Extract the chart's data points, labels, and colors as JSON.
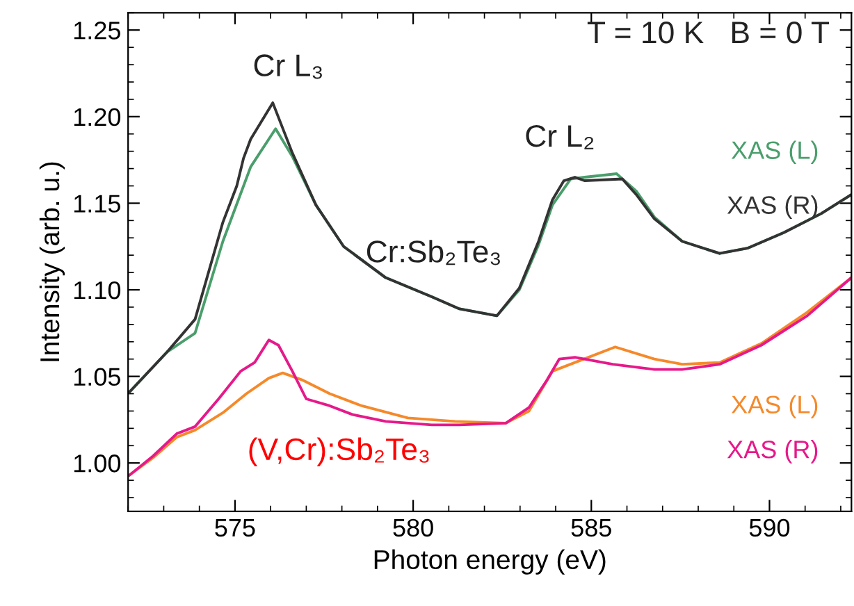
{
  "chart_data": {
    "type": "line",
    "xlabel": "Photon energy (eV)",
    "ylabel": "Intensity (arb. u.)",
    "xlim": [
      572,
      592.3
    ],
    "xticks": [
      575,
      580,
      585,
      590
    ],
    "ylim": [
      0.972,
      1.26
    ],
    "yticks": [
      {
        "value": 1.0,
        "label": "1.00"
      },
      {
        "value": 1.05,
        "label": "1.05"
      },
      {
        "value": 1.1,
        "label": "1.10"
      },
      {
        "value": 1.15,
        "label": "1.15"
      },
      {
        "value": 1.2,
        "label": "1.20"
      },
      {
        "value": 1.25,
        "label": "1.25"
      }
    ],
    "grid": false,
    "legend": false,
    "marker": "none",
    "line_style": "solid",
    "series": [
      {
        "name": "XAS (L)",
        "color": "#4a9e6b",
        "x": [
          572.04,
          573.09,
          573.88,
          574.66,
          575.44,
          576.14,
          576.61,
          577.27,
          578.05,
          579.23,
          580.52,
          581.3,
          582.35,
          582.98,
          583.52,
          583.91,
          584.42,
          584.81,
          585.71,
          586.26,
          586.77,
          587.55,
          588.6,
          589.38,
          590.4,
          591.45,
          592.3
        ],
        "values": [
          1.041,
          1.064,
          1.075,
          1.128,
          1.171,
          1.193,
          1.177,
          1.149,
          1.125,
          1.107,
          1.096,
          1.089,
          1.085,
          1.1,
          1.126,
          1.149,
          1.164,
          1.165,
          1.167,
          1.157,
          1.142,
          1.128,
          1.121,
          1.124,
          1.133,
          1.144,
          1.155
        ]
      },
      {
        "name": "XAS (R)",
        "color": "#333333",
        "x": [
          572.04,
          573.09,
          573.88,
          574.66,
          575.05,
          575.24,
          575.44,
          576.06,
          576.61,
          577.27,
          578.05,
          579.23,
          580.52,
          581.3,
          582.35,
          582.98,
          583.52,
          583.91,
          584.23,
          584.54,
          584.81,
          585.87,
          586.26,
          586.77,
          587.55,
          588.6,
          589.38,
          590.4,
          591.45,
          592.3
        ],
        "values": [
          1.041,
          1.064,
          1.083,
          1.139,
          1.16,
          1.176,
          1.187,
          1.208,
          1.179,
          1.149,
          1.125,
          1.107,
          1.096,
          1.089,
          1.085,
          1.101,
          1.128,
          1.152,
          1.163,
          1.165,
          1.163,
          1.164,
          1.155,
          1.141,
          1.128,
          1.121,
          1.124,
          1.133,
          1.144,
          1.155
        ]
      },
      {
        "name": "XAS (L)",
        "color": "#f5892a",
        "x": [
          572.04,
          572.7,
          573.37,
          573.88,
          574.66,
          575.32,
          575.95,
          576.34,
          576.88,
          577.66,
          578.56,
          579.85,
          581.18,
          582.6,
          583.25,
          583.91,
          584.54,
          585.67,
          586.77,
          587.55,
          588.6,
          589.77,
          591.06,
          592.3
        ],
        "values": [
          0.993,
          1.003,
          1.015,
          1.019,
          1.029,
          1.04,
          1.049,
          1.052,
          1.048,
          1.04,
          1.033,
          1.026,
          1.024,
          1.023,
          1.03,
          1.053,
          1.058,
          1.067,
          1.06,
          1.057,
          1.058,
          1.069,
          1.087,
          1.107
        ]
      },
      {
        "name": "XAS (R)",
        "color": "#e6198a",
        "x": [
          572.04,
          572.7,
          573.37,
          573.88,
          574.54,
          575.16,
          575.55,
          575.95,
          576.22,
          576.61,
          577.0,
          577.66,
          578.29,
          579.23,
          580.52,
          581.3,
          582.6,
          583.25,
          583.76,
          584.1,
          584.54,
          585.6,
          586.77,
          587.55,
          588.6,
          589.77,
          591.06,
          592.3
        ],
        "values": [
          0.993,
          1.004,
          1.017,
          1.021,
          1.037,
          1.053,
          1.058,
          1.071,
          1.068,
          1.053,
          1.037,
          1.033,
          1.028,
          1.024,
          1.022,
          1.022,
          1.023,
          1.032,
          1.048,
          1.06,
          1.061,
          1.057,
          1.054,
          1.054,
          1.057,
          1.068,
          1.085,
          1.107
        ]
      }
    ],
    "annotations": [
      {
        "text": "Cr L₃",
        "x": 576.06,
        "y": 1.208
      },
      {
        "text": "Cr L₂",
        "x": 584.6,
        "y": 1.165
      },
      {
        "text": "Cr:Sb₂Te₃",
        "x": 580.52,
        "y": 1.096
      },
      {
        "text": "(V,Cr):Sb₂Te₃",
        "x": 580.52,
        "y": 1.022
      },
      "T = 10 K   B = 0 T"
    ]
  }
}
